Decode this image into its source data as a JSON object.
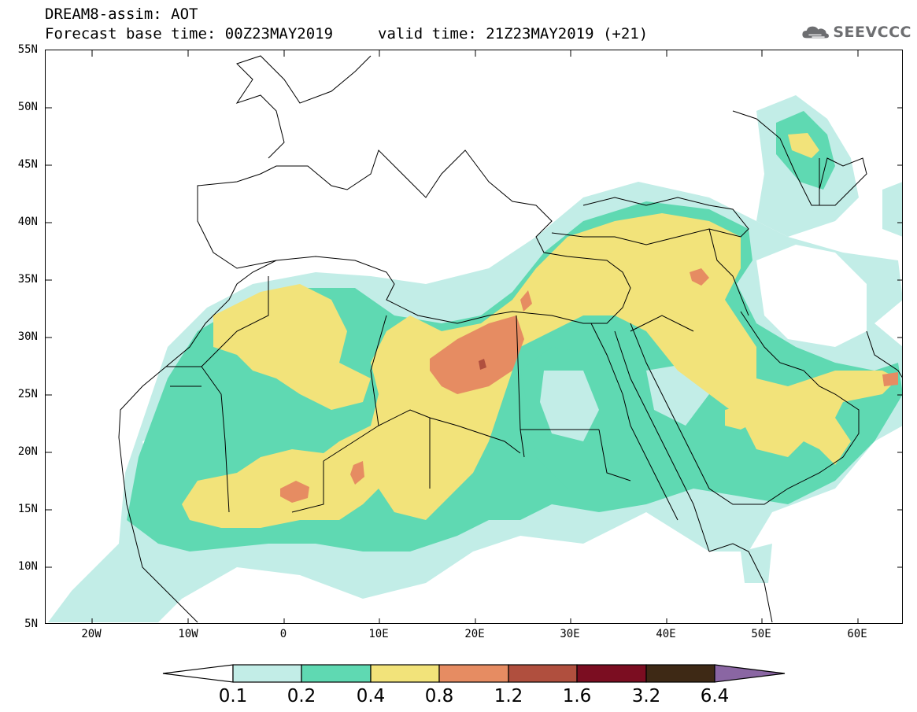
{
  "title": {
    "line1": "DREAM8-assim: AOT",
    "base": "Forecast base time: 00Z23MAY2019",
    "valid": "valid time: 21Z23MAY2019 (+21)"
  },
  "logo": {
    "text": "SEEVCCC",
    "icon": "cloud-icon"
  },
  "axes": {
    "lat_labels": [
      "55N",
      "50N",
      "45N",
      "40N",
      "35N",
      "30N",
      "25N",
      "20N",
      "15N",
      "10N",
      "5N"
    ],
    "lon_labels": [
      "20W",
      "10W",
      "0",
      "10E",
      "20E",
      "30E",
      "40E",
      "50E",
      "60E"
    ]
  },
  "colorbar": {
    "labels": [
      "0.1",
      "0.2",
      "0.4",
      "0.8",
      "1.2",
      "1.6",
      "3.2",
      "6.4"
    ],
    "colors": [
      "#ffffff",
      "#c2ede7",
      "#5fd9b2",
      "#f2e37a",
      "#e68c62",
      "#b04f3e",
      "#7b0d21",
      "#3e2915",
      "#8a66a3"
    ]
  },
  "colors": {
    "lev1": "#c2ede7",
    "lev2": "#5fd9b2",
    "lev3": "#f2e37a",
    "lev4": "#e68c62",
    "lev5": "#b04f3e"
  }
}
